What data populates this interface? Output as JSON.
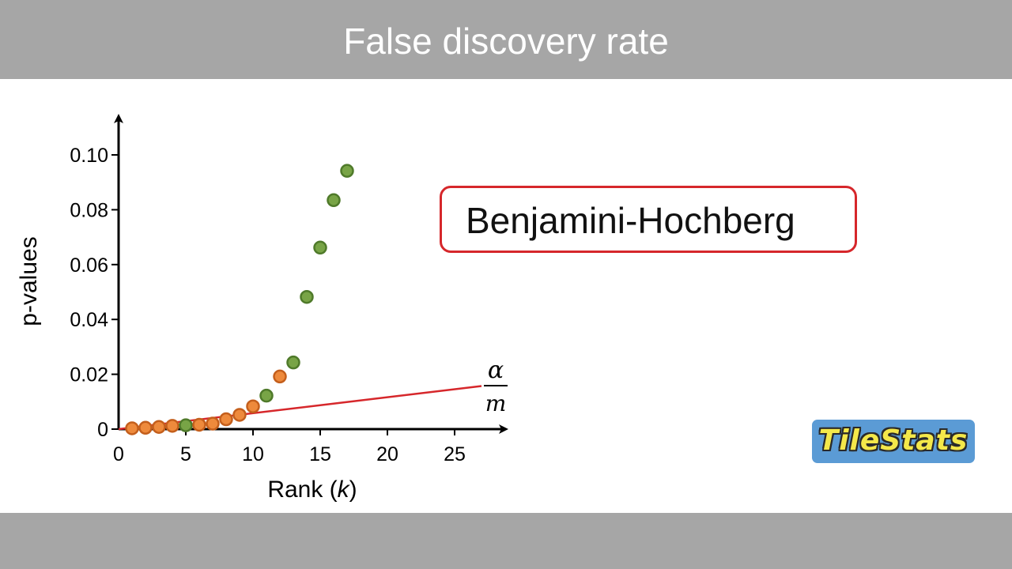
{
  "header": {
    "title": "False discovery rate"
  },
  "method_box": {
    "label": "Benjamini-Hochberg"
  },
  "logo": {
    "text": "TileStats"
  },
  "colors": {
    "header_bar": "#a6a6a6",
    "accent_red": "#d6272b",
    "significant_orange": "#ee8a3c",
    "nonsignificant_green": "#78a446",
    "logo_blue": "#5b9bd5",
    "logo_yellow": "#f4e84a"
  },
  "chart_data": {
    "type": "scatter",
    "title": "",
    "xlabel": "Rank (k)",
    "ylabel": "p-values",
    "xlim": [
      0,
      27
    ],
    "ylim": [
      0,
      0.105
    ],
    "x_ticks": [
      {
        "value": 0,
        "label": "0"
      },
      {
        "value": 5,
        "label": "5"
      },
      {
        "value": 10,
        "label": "10"
      },
      {
        "value": 15,
        "label": "15"
      },
      {
        "value": 20,
        "label": "20"
      },
      {
        "value": 25,
        "label": "25"
      }
    ],
    "y_ticks": [
      {
        "value": 0,
        "label": "0"
      },
      {
        "value": 0.02,
        "label": "0.02"
      },
      {
        "value": 0.04,
        "label": "0.04"
      },
      {
        "value": 0.06,
        "label": "0.06"
      },
      {
        "value": 0.08,
        "label": "0.08"
      },
      {
        "value": 0.1,
        "label": "0.10"
      }
    ],
    "threshold_line": {
      "label_numerator": "α",
      "label_denominator": "m",
      "x": [
        0,
        27
      ],
      "y": [
        0,
        0.0157
      ],
      "color": "#d6272b"
    },
    "points": [
      {
        "x": 1,
        "y": 0.0003,
        "group": "orange"
      },
      {
        "x": 2,
        "y": 0.0005,
        "group": "orange"
      },
      {
        "x": 3,
        "y": 0.0008,
        "group": "orange"
      },
      {
        "x": 4,
        "y": 0.0012,
        "group": "orange"
      },
      {
        "x": 5,
        "y": 0.0014,
        "group": "green"
      },
      {
        "x": 6,
        "y": 0.0016,
        "group": "orange"
      },
      {
        "x": 7,
        "y": 0.002,
        "group": "orange"
      },
      {
        "x": 8,
        "y": 0.0036,
        "group": "orange"
      },
      {
        "x": 9,
        "y": 0.0052,
        "group": "orange"
      },
      {
        "x": 10,
        "y": 0.0083,
        "group": "orange"
      },
      {
        "x": 11,
        "y": 0.0122,
        "group": "green"
      },
      {
        "x": 12,
        "y": 0.0192,
        "group": "orange"
      },
      {
        "x": 13,
        "y": 0.0243,
        "group": "green"
      },
      {
        "x": 14,
        "y": 0.0482,
        "group": "green"
      },
      {
        "x": 15,
        "y": 0.0662,
        "group": "green"
      },
      {
        "x": 16,
        "y": 0.0835,
        "group": "green"
      },
      {
        "x": 17,
        "y": 0.0942,
        "group": "green"
      }
    ],
    "grid": false,
    "legend": "none"
  }
}
